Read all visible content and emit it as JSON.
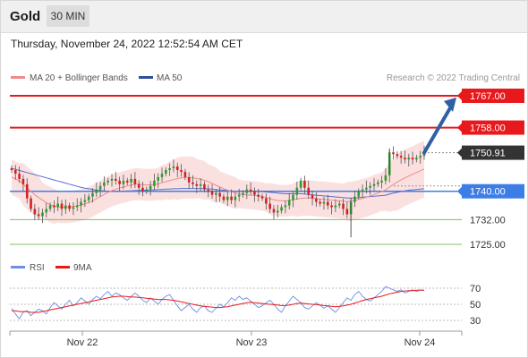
{
  "header": {
    "instrument": "Gold",
    "timeframe": "30 MIN",
    "datetime": "Thursday, November 24, 2022 12:52:54 AM CET"
  },
  "legend": {
    "ma20_label": "MA 20 + Bollinger Bands",
    "ma50_label": "MA 50",
    "copyright": "Research © 2022 Trading Central",
    "rsi_label": "RSI",
    "ma9_label": "9MA"
  },
  "colors": {
    "resistance": "#e8191c",
    "support": "#3d7ee6",
    "minor_support": "#7fbf5f",
    "bull_candle": "#2e9b2e",
    "bear_candle": "#d81e1e",
    "ma20": "#f08a8a",
    "ma50": "#5a6fc8",
    "bollinger_fill": "#fbe0e0",
    "arrow": "#2f5fa5",
    "rsi": "#6b8ee6",
    "rsi_ma": "#e8191c"
  },
  "chart_data": [
    {
      "type": "line",
      "title": "",
      "x_ticks": [
        "Nov 22",
        "Nov 23",
        "Nov 24"
      ],
      "price_levels": [
        {
          "value": 1767.0,
          "label": "1767.00",
          "kind": "resistance"
        },
        {
          "value": 1758.0,
          "label": "1758.00",
          "kind": "resistance"
        },
        {
          "value": 1750.91,
          "label": "1750.91",
          "kind": "last"
        },
        {
          "value": 1740.0,
          "label": "1740.00",
          "kind": "support"
        },
        {
          "value": 1732.0,
          "label": "1732.00",
          "kind": "minor_support"
        },
        {
          "value": 1725.0,
          "label": "1725.00",
          "kind": "minor_support"
        }
      ],
      "ylim": [
        1722,
        1770
      ],
      "close_series": [
        1746.0,
        1745.0,
        1743.5,
        1742.0,
        1738.0,
        1735.0,
        1733.5,
        1733.0,
        1734.0,
        1735.0,
        1736.0,
        1735.5,
        1736.5,
        1735.0,
        1736.0,
        1735.0,
        1735.5,
        1736.0,
        1737.0,
        1737.5,
        1738.5,
        1739.5,
        1740.5,
        1741.5,
        1742.5,
        1743.0,
        1743.5,
        1743.0,
        1742.0,
        1743.0,
        1742.5,
        1743.5,
        1742.0,
        1741.0,
        1740.0,
        1740.5,
        1741.5,
        1743.0,
        1744.0,
        1745.0,
        1746.0,
        1746.5,
        1747.0,
        1746.0,
        1745.5,
        1744.0,
        1742.5,
        1742.0,
        1741.5,
        1742.0,
        1740.5,
        1740.0,
        1739.0,
        1739.5,
        1738.5,
        1737.5,
        1738.5,
        1737.5,
        1738.5,
        1739.0,
        1739.5,
        1740.5,
        1740.0,
        1739.0,
        1738.5,
        1738.0,
        1736.5,
        1735.0,
        1734.0,
        1734.5,
        1735.5,
        1736.0,
        1737.5,
        1739.0,
        1741.0,
        1743.0,
        1741.0,
        1739.0,
        1738.0,
        1737.0,
        1736.5,
        1737.0,
        1736.0,
        1735.5,
        1736.0,
        1736.5,
        1735.0,
        1733.5,
        1737.0,
        1738.5,
        1740.0,
        1740.5,
        1741.0,
        1741.5,
        1742.0,
        1742.5,
        1743.0,
        1744.5,
        1751.0,
        1750.5,
        1750.0,
        1749.5,
        1749.0,
        1749.5,
        1749.0,
        1749.5,
        1750.0,
        1750.91
      ],
      "ma20": [
        1744.0,
        1743.5,
        1743.0,
        1742.0,
        1741.0,
        1740.0,
        1739.0,
        1738.2,
        1737.5,
        1736.8,
        1736.2,
        1735.8,
        1735.6,
        1735.5,
        1735.5,
        1735.6,
        1735.7,
        1735.9,
        1736.1,
        1736.4,
        1736.8,
        1737.3,
        1737.9,
        1738.5,
        1739.1,
        1739.7,
        1740.2,
        1740.6,
        1740.9,
        1741.2,
        1741.5,
        1741.8,
        1742.0,
        1742.0,
        1741.9,
        1741.8,
        1741.8,
        1741.9,
        1742.1,
        1742.4,
        1742.7,
        1743.0,
        1743.3,
        1743.6,
        1743.8,
        1743.9,
        1743.9,
        1743.8,
        1743.6,
        1743.4,
        1743.1,
        1742.7,
        1742.2,
        1741.7,
        1741.2,
        1740.7,
        1740.3,
        1739.9,
        1739.5,
        1739.3,
        1739.1,
        1739.0,
        1738.9,
        1738.8,
        1738.7,
        1738.5,
        1738.2,
        1737.9,
        1737.6,
        1737.4,
        1737.3,
        1737.3,
        1737.4,
        1737.6,
        1737.8,
        1738.0,
        1738.1,
        1738.1,
        1738.0,
        1737.9,
        1737.8,
        1737.7,
        1737.6,
        1737.5,
        1737.4,
        1737.3,
        1737.2,
        1737.1,
        1737.2,
        1737.4,
        1737.7,
        1738.0,
        1738.3,
        1738.7,
        1739.1,
        1739.5,
        1739.9,
        1740.4,
        1741.2,
        1741.9,
        1742.6,
        1743.2,
        1743.8,
        1744.3,
        1744.8,
        1745.3,
        1745.8,
        1746.3
      ],
      "ma50": [
        1746.5,
        1746.2,
        1745.9,
        1745.6,
        1745.3,
        1745.0,
        1744.7,
        1744.4,
        1744.1,
        1743.8,
        1743.5,
        1743.2,
        1742.9,
        1742.6,
        1742.3,
        1742.0,
        1741.7,
        1741.4,
        1741.1,
        1740.9,
        1740.7,
        1740.5,
        1740.3,
        1740.2,
        1740.1,
        1740.0,
        1740.0,
        1740.0,
        1740.0,
        1740.0,
        1740.1,
        1740.1,
        1740.2,
        1740.2,
        1740.3,
        1740.3,
        1740.4,
        1740.4,
        1740.5,
        1740.5,
        1740.6,
        1740.6,
        1740.7,
        1740.7,
        1740.8,
        1740.8,
        1740.8,
        1740.8,
        1740.8,
        1740.8,
        1740.7,
        1740.7,
        1740.6,
        1740.5,
        1740.4,
        1740.3,
        1740.2,
        1740.1,
        1740.0,
        1740.0,
        1740.0,
        1740.0,
        1740.0,
        1740.0,
        1739.9,
        1739.9,
        1739.8,
        1739.7,
        1739.6,
        1739.5,
        1739.4,
        1739.3,
        1739.3,
        1739.3,
        1739.3,
        1739.3,
        1739.2,
        1739.1,
        1739.0,
        1738.9,
        1738.8,
        1738.7,
        1738.6,
        1738.5,
        1738.4,
        1738.3,
        1738.2,
        1738.1,
        1738.1,
        1738.1,
        1738.2,
        1738.3,
        1738.4,
        1738.5,
        1738.6,
        1738.7,
        1738.8,
        1738.9,
        1739.2,
        1739.5,
        1739.7,
        1739.9,
        1740.1,
        1740.3,
        1740.4,
        1740.5,
        1740.6,
        1740.7
      ],
      "bb_width": [
        5,
        5,
        5,
        6,
        6,
        6,
        6,
        6,
        5,
        5,
        5,
        5,
        4.5,
        4.5,
        4.5,
        4.5,
        4.5,
        4.5,
        4.5,
        4.5,
        4.5,
        4.5,
        4.5,
        4.5,
        4.5,
        4.5,
        4.5,
        4.5,
        4.5,
        4.5,
        4.5,
        4.5,
        4.5,
        4.5,
        4.5,
        4.5,
        4.5,
        4.5,
        4.5,
        5,
        5,
        5.5,
        5.5,
        6,
        6,
        6,
        6,
        6,
        5.5,
        5.5,
        5.5,
        5,
        5,
        5,
        4.5,
        4.5,
        4.5,
        4.5,
        4.5,
        4,
        4,
        4,
        4,
        4,
        4,
        4,
        4,
        4.5,
        4.5,
        4.5,
        4.5,
        4.5,
        4.5,
        4.5,
        5,
        5,
        5,
        5,
        5,
        5,
        5,
        5,
        5,
        5,
        5,
        5,
        5,
        5.5,
        5.5,
        5.5,
        5.5,
        5.5,
        5.5,
        5.5,
        5.5,
        5.5,
        5.5,
        6,
        7,
        7.5,
        8,
        8,
        8,
        8,
        8,
        8,
        8,
        8
      ]
    },
    {
      "type": "line",
      "title": "",
      "series_names": [
        "RSI",
        "9MA"
      ],
      "y_ticks": [
        70,
        50,
        30
      ],
      "ylim": [
        20,
        80
      ],
      "rsi": [
        45,
        38,
        32,
        40,
        42,
        36,
        40,
        44,
        42,
        38,
        46,
        52,
        48,
        44,
        50,
        55,
        48,
        52,
        58,
        54,
        50,
        56,
        60,
        57,
        62,
        66,
        60,
        64,
        62,
        58,
        55,
        60,
        64,
        60,
        55,
        52,
        58,
        54,
        50,
        56,
        60,
        62,
        55,
        48,
        42,
        46,
        50,
        44,
        40,
        46,
        48,
        42,
        40,
        45,
        50,
        47,
        52,
        58,
        55,
        60,
        56,
        58,
        54,
        50,
        46,
        48,
        52,
        55,
        50,
        44,
        40,
        48,
        54,
        60,
        56,
        52,
        46,
        44,
        48,
        52,
        49,
        45,
        48,
        44,
        40,
        46,
        52,
        58,
        55,
        62,
        66,
        60,
        56,
        54,
        58,
        62,
        66,
        72,
        70,
        68,
        66,
        68,
        64,
        66,
        68,
        66,
        68,
        67
      ],
      "ma9": [
        42,
        42,
        41,
        41,
        41,
        40,
        40,
        40,
        41,
        42,
        43,
        44,
        45,
        46,
        47,
        48,
        49,
        50,
        51,
        52,
        53,
        54,
        55,
        56,
        57,
        58,
        59,
        59.5,
        60,
        60,
        59.5,
        59,
        59,
        58.5,
        58,
        57.5,
        57,
        56.5,
        56,
        56,
        56,
        55.5,
        55,
        54,
        53,
        52,
        51,
        50,
        49,
        48,
        47.5,
        47,
        46.5,
        46,
        46,
        46.5,
        47,
        48,
        49,
        50,
        51,
        52,
        52.5,
        52,
        51.5,
        51,
        50.5,
        50,
        49.5,
        49,
        48.5,
        48.5,
        49,
        50,
        51,
        51.5,
        51,
        50.5,
        50,
        49.5,
        49,
        48.5,
        48,
        47.5,
        47,
        47.5,
        48,
        49,
        50,
        51.5,
        53,
        54.5,
        56,
        57,
        58,
        59,
        60,
        61.5,
        63,
        64,
        65,
        66,
        66.5,
        67,
        67,
        67.5,
        67.5,
        67.5
      ]
    }
  ]
}
